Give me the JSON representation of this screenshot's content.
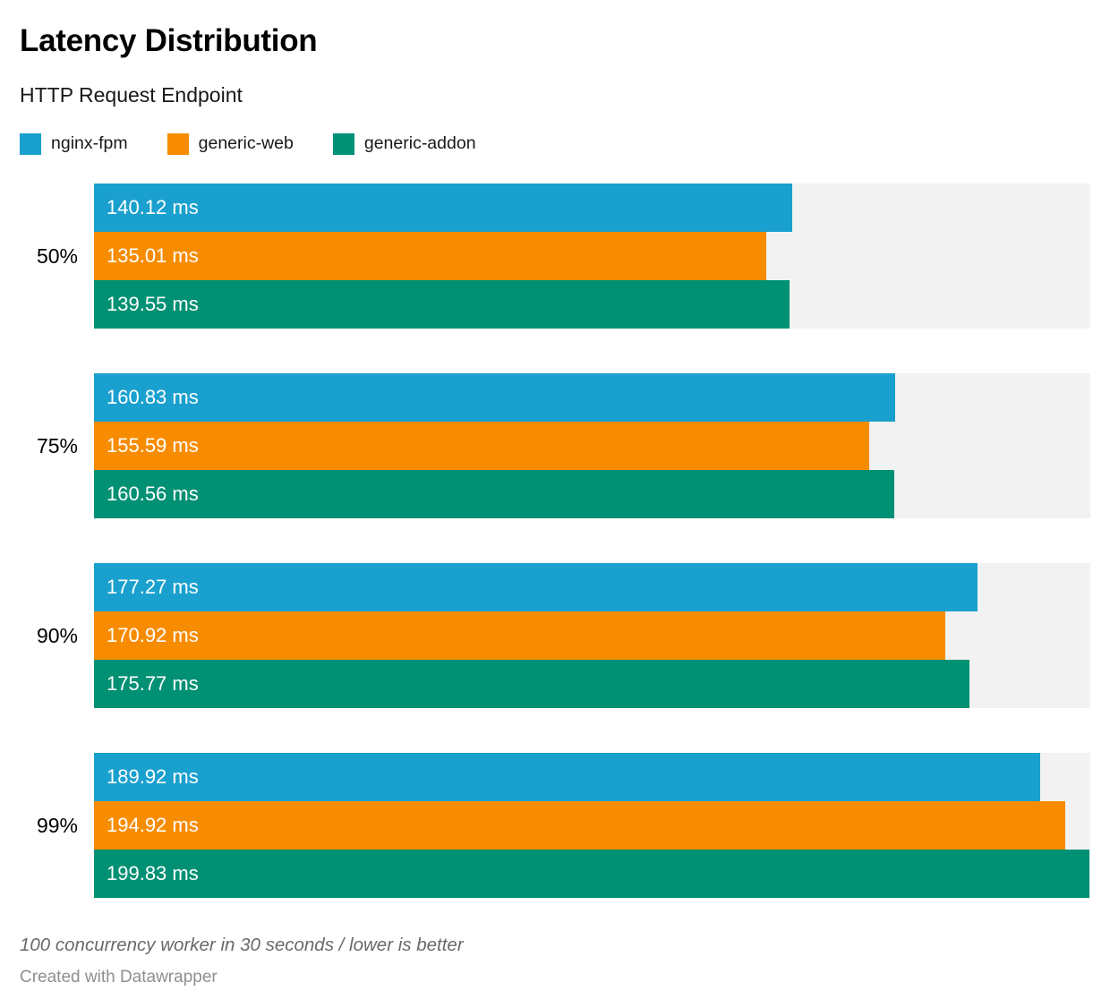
{
  "chart_data": {
    "type": "bar",
    "orientation": "horizontal",
    "title": "Latency Distribution",
    "subtitle": "HTTP Request Endpoint",
    "categories": [
      "50%",
      "75%",
      "90%",
      "99%"
    ],
    "series": [
      {
        "name": "nginx-fpm",
        "color": "#1AA0CE",
        "values": [
          140.12,
          160.83,
          177.27,
          189.92
        ],
        "labels": [
          "140.12 ms",
          "160.83 ms",
          "177.27 ms",
          "189.92 ms"
        ]
      },
      {
        "name": "generic-web",
        "color": "#F88C00",
        "values": [
          135.01,
          155.59,
          170.92,
          194.92
        ],
        "labels": [
          "135.01 ms",
          "155.59 ms",
          "170.92 ms",
          "194.92 ms"
        ]
      },
      {
        "name": "generic-addon",
        "color": "#009073",
        "values": [
          139.55,
          160.56,
          175.77,
          199.83
        ],
        "labels": [
          "139.55 ms",
          "160.56 ms",
          "175.77 ms",
          "199.83 ms"
        ]
      }
    ],
    "unit": "ms",
    "xlim": [
      0,
      200
    ],
    "grid": false,
    "legend_position": "top",
    "track_color": "#F2F2F2",
    "note": "100 concurrency worker in 30 seconds / lower is better",
    "attribution": "Created with Datawrapper"
  }
}
